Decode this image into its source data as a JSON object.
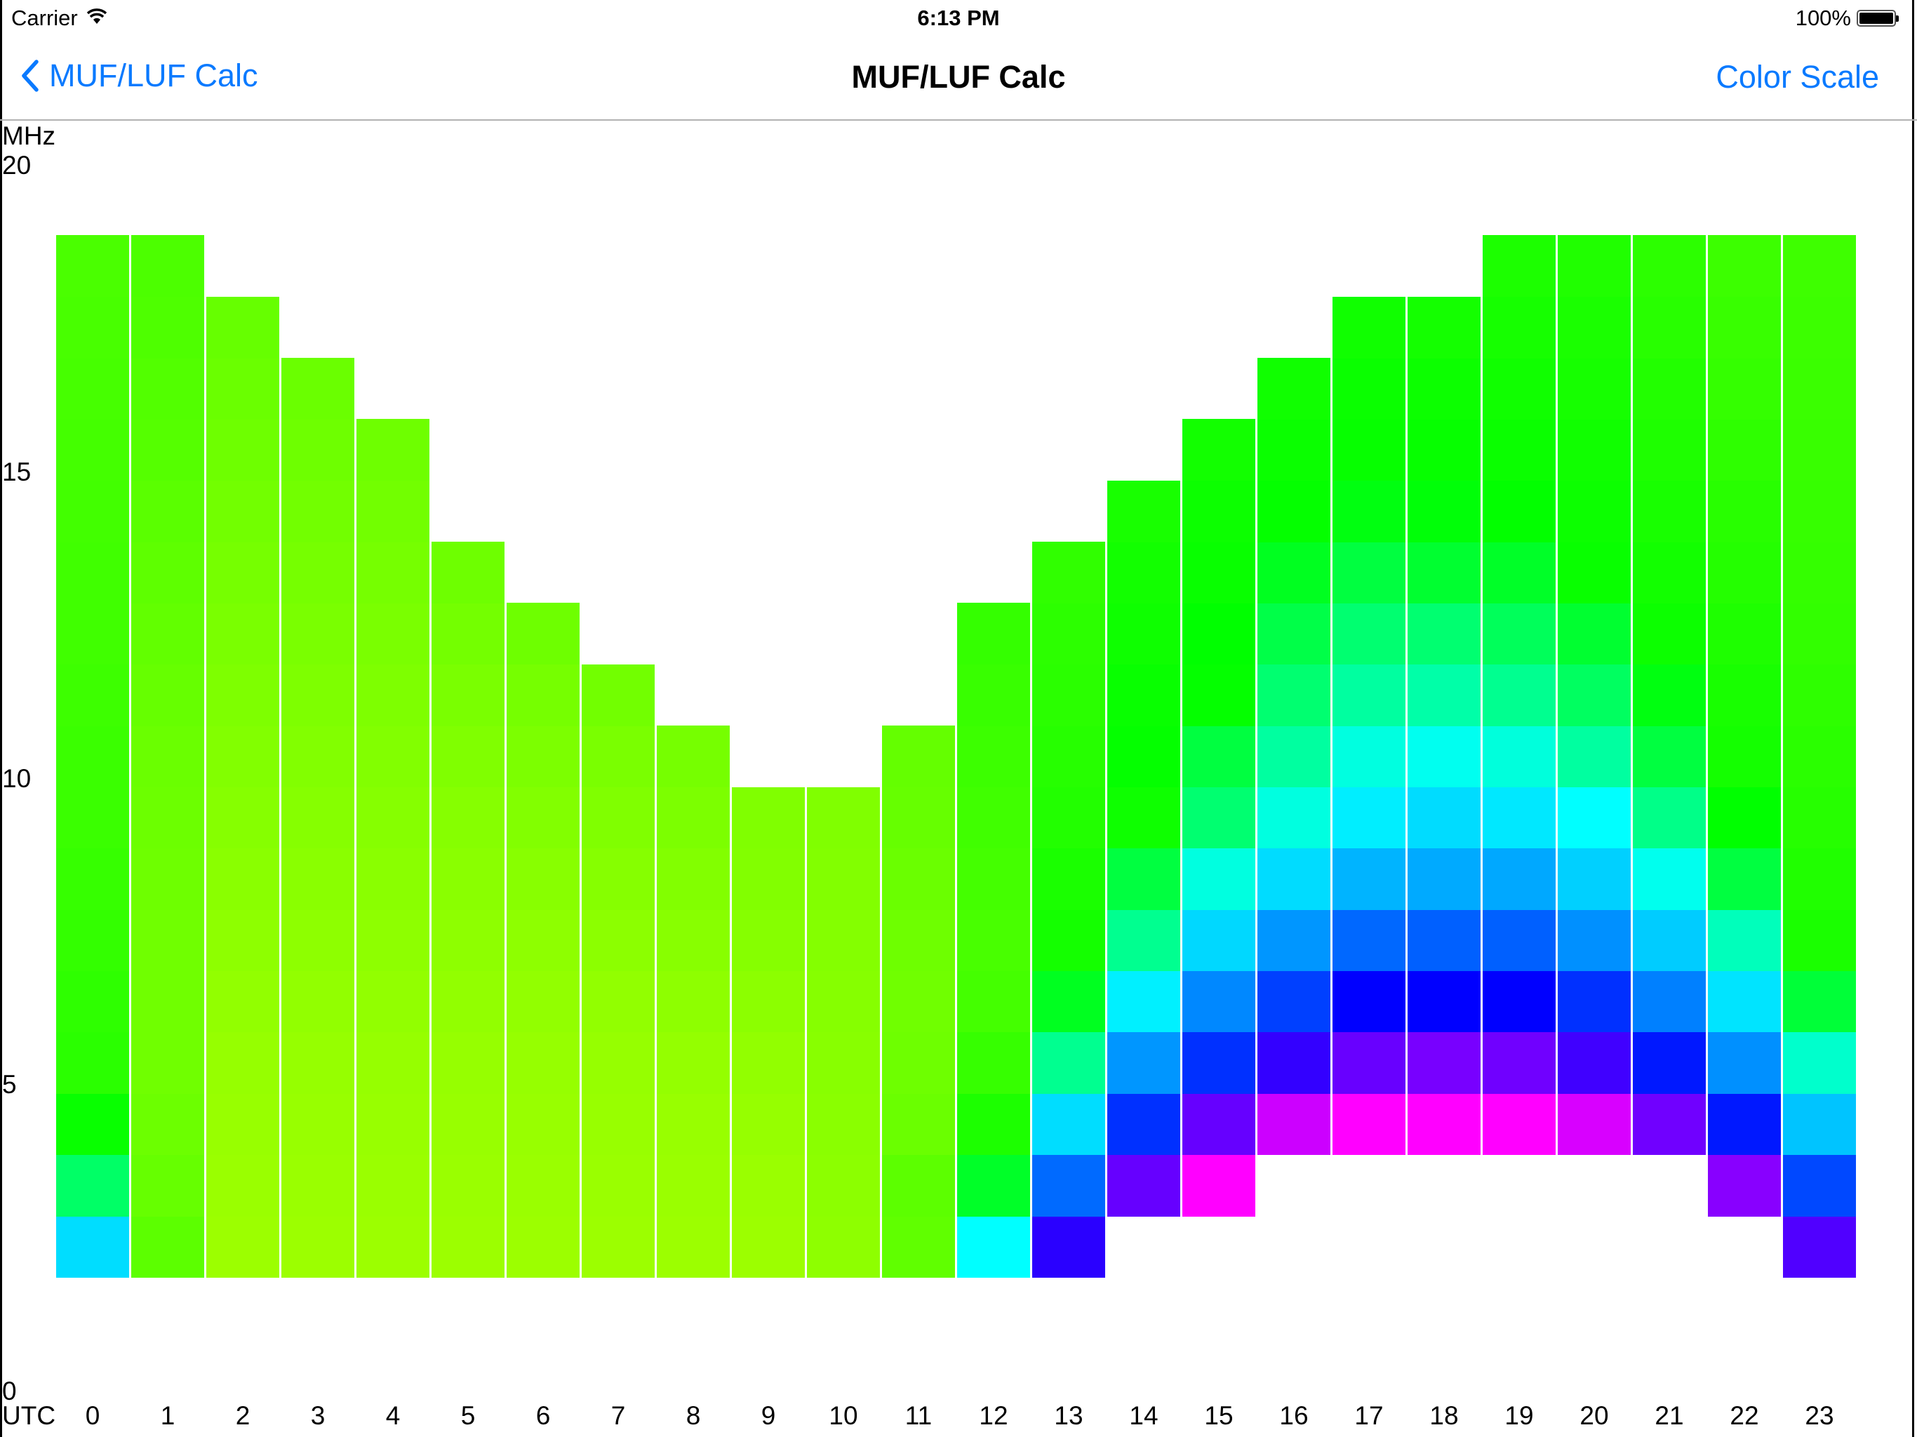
{
  "status_bar": {
    "carrier": "Carrier",
    "wifi_icon": "wifi-icon",
    "time": "6:13 PM",
    "battery_percent": "100%",
    "battery_icon": "battery-full-icon"
  },
  "nav": {
    "back_label": "MUF/LUF Calc",
    "back_icon": "chevron-left-icon",
    "title": "MUF/LUF Calc",
    "right_button": "Color Scale",
    "accent_color": "#0a7aff"
  },
  "chart_data": {
    "type": "heatmap",
    "title": "MUF/LUF Calc",
    "xlabel": "UTC",
    "ylabel": "MHz",
    "ylim": [
      0,
      20
    ],
    "y_ticks": [
      20,
      15,
      10,
      5,
      0
    ],
    "x_ticks": [
      "0",
      "1",
      "2",
      "3",
      "4",
      "5",
      "6",
      "7",
      "8",
      "9",
      "10",
      "11",
      "12",
      "13",
      "14",
      "15",
      "16",
      "17",
      "18",
      "19",
      "20",
      "21",
      "22",
      "23"
    ],
    "grid": false,
    "legend": "none",
    "cell_unit_mhz": 1,
    "columns": [
      {
        "utc": 0,
        "luf": 2,
        "muf": 19,
        "colors": [
          "#00ddff",
          "#00ff66",
          "#08ff00",
          "#2aff00",
          "#2eff00",
          "#33ff00",
          "#36ff00",
          "#3aff00",
          "#3aff00",
          "#3dff00",
          "#40ff00",
          "#40ff00",
          "#42ff00",
          "#44ff00",
          "#46ff00",
          "#48ff00",
          "#4aff00"
        ]
      },
      {
        "utc": 1,
        "luf": 2,
        "muf": 19,
        "colors": [
          "#5cff00",
          "#66ff00",
          "#6cff00",
          "#70ff00",
          "#70ff00",
          "#70ff00",
          "#6eff00",
          "#6cff00",
          "#6aff00",
          "#66ff00",
          "#62ff00",
          "#5eff00",
          "#5aff00",
          "#55ff00",
          "#52ff00",
          "#4eff00",
          "#4cff00"
        ]
      },
      {
        "utc": 2,
        "luf": 2,
        "muf": 18,
        "colors": [
          "#9cff00",
          "#9aff00",
          "#98ff00",
          "#96ff00",
          "#92ff00",
          "#8eff00",
          "#8aff00",
          "#86ff00",
          "#82ff00",
          "#7eff00",
          "#7aff00",
          "#76ff00",
          "#72ff00",
          "#6eff00",
          "#6aff00",
          "#66ff00"
        ]
      },
      {
        "utc": 3,
        "luf": 2,
        "muf": 17,
        "colors": [
          "#9cff00",
          "#9aff00",
          "#98ff00",
          "#96ff00",
          "#92ff00",
          "#8eff00",
          "#8aff00",
          "#86ff00",
          "#82ff00",
          "#7eff00",
          "#7aff00",
          "#76ff00",
          "#72ff00",
          "#6eff00",
          "#6aff00"
        ]
      },
      {
        "utc": 4,
        "luf": 2,
        "muf": 16,
        "colors": [
          "#9cff00",
          "#9aff00",
          "#98ff00",
          "#96ff00",
          "#92ff00",
          "#8eff00",
          "#8aff00",
          "#86ff00",
          "#82ff00",
          "#7eff00",
          "#7aff00",
          "#76ff00",
          "#72ff00",
          "#6eff00"
        ]
      },
      {
        "utc": 5,
        "luf": 2,
        "muf": 14,
        "colors": [
          "#9cff00",
          "#9aff00",
          "#98ff00",
          "#96ff00",
          "#92ff00",
          "#8eff00",
          "#8aff00",
          "#86ff00",
          "#80ff00",
          "#7aff00",
          "#74ff00",
          "#6eff00"
        ]
      },
      {
        "utc": 6,
        "luf": 2,
        "muf": 13,
        "colors": [
          "#9cff00",
          "#9aff00",
          "#98ff00",
          "#96ff00",
          "#92ff00",
          "#8eff00",
          "#88ff00",
          "#82ff00",
          "#7cff00",
          "#76ff00",
          "#6eff00"
        ]
      },
      {
        "utc": 7,
        "luf": 2,
        "muf": 12,
        "colors": [
          "#9cff00",
          "#9aff00",
          "#98ff00",
          "#96ff00",
          "#92ff00",
          "#8cff00",
          "#86ff00",
          "#80ff00",
          "#7aff00",
          "#72ff00"
        ]
      },
      {
        "utc": 8,
        "luf": 2,
        "muf": 11,
        "colors": [
          "#9cff00",
          "#9aff00",
          "#98ff00",
          "#94ff00",
          "#8eff00",
          "#88ff00",
          "#82ff00",
          "#7cff00",
          "#76ff00"
        ]
      },
      {
        "utc": 9,
        "luf": 2,
        "muf": 10,
        "colors": [
          "#9cff00",
          "#9aff00",
          "#96ff00",
          "#92ff00",
          "#8cff00",
          "#86ff00",
          "#82ff00",
          "#80ff00"
        ]
      },
      {
        "utc": 10,
        "luf": 2,
        "muf": 10,
        "colors": [
          "#8eff00",
          "#8cff00",
          "#8aff00",
          "#88ff00",
          "#86ff00",
          "#84ff00",
          "#82ff00",
          "#80ff00"
        ]
      },
      {
        "utc": 11,
        "luf": 2,
        "muf": 11,
        "colors": [
          "#60ff00",
          "#5cff00",
          "#6aff00",
          "#6eff00",
          "#70ff00",
          "#6eff00",
          "#6aff00",
          "#66ff00",
          "#64ff00"
        ]
      },
      {
        "utc": 12,
        "luf": 2,
        "muf": 13,
        "colors": [
          "#00ffff",
          "#00ff28",
          "#1cff00",
          "#36ff00",
          "#44ff00",
          "#48ff00",
          "#44ff00",
          "#40ff00",
          "#3cff00",
          "#38ff00",
          "#34ff00"
        ]
      },
      {
        "utc": 13,
        "luf": 2,
        "muf": 14,
        "colors": [
          "#2a00ff",
          "#006aff",
          "#00ddff",
          "#00ff90",
          "#00ff20",
          "#14ff00",
          "#1aff00",
          "#22ff00",
          "#26ff00",
          "#2aff00",
          "#2cff00",
          "#30ff00"
        ]
      },
      {
        "utc": 14,
        "luf": 3,
        "muf": 15,
        "colors": [
          "#6600ff",
          "#0030ff",
          "#0096ff",
          "#00f0ff",
          "#00ff90",
          "#00ff40",
          "#0eff00",
          "#04ff00",
          "#08ff00",
          "#0eff00",
          "#12ff00",
          "#18ff00"
        ]
      },
      {
        "utc": 15,
        "luf": 3,
        "muf": 16,
        "colors": [
          "#ff00ff",
          "#6600ff",
          "#0030ff",
          "#0088ff",
          "#00d8ff",
          "#00ffe0",
          "#00ff70",
          "#00ff40",
          "#04ff00",
          "#00ff00",
          "#08ff00",
          "#0cff00",
          "#12ff00"
        ]
      },
      {
        "utc": 16,
        "luf": 4,
        "muf": 17,
        "colors": [
          "#cc00ff",
          "#3300ff",
          "#0040ff",
          "#0096ff",
          "#00dcff",
          "#00ffe0",
          "#00ffa0",
          "#00ff70",
          "#00ff48",
          "#00ff20",
          "#04ff00",
          "#0aff00",
          "#10ff00"
        ]
      },
      {
        "utc": 17,
        "luf": 4,
        "muf": 18,
        "colors": [
          "#ff00ff",
          "#6800ff",
          "#0000ff",
          "#0068ff",
          "#00b4ff",
          "#00eeff",
          "#00ffe0",
          "#00ffa0",
          "#00ff70",
          "#00ff40",
          "#00ff10",
          "#06ff00",
          "#0aff00",
          "#10ff00"
        ]
      },
      {
        "utc": 18,
        "luf": 4,
        "muf": 18,
        "colors": [
          "#ff00ff",
          "#7800ff",
          "#0000ff",
          "#0060ff",
          "#00aaff",
          "#00dcff",
          "#00fff0",
          "#00ffa8",
          "#00ff70",
          "#00ff30",
          "#00ff08",
          "#06ff00",
          "#0cff00",
          "#14ff00"
        ]
      },
      {
        "utc": 19,
        "luf": 4,
        "muf": 19,
        "colors": [
          "#ff00ff",
          "#7000ff",
          "#0000ff",
          "#0060ff",
          "#00a8ff",
          "#00e8ff",
          "#00ffdc",
          "#00ff90",
          "#00ff5a",
          "#00ff28",
          "#02ff00",
          "#0aff00",
          "#10ff00",
          "#16ff00",
          "#1cff00"
        ]
      },
      {
        "utc": 20,
        "luf": 4,
        "muf": 19,
        "colors": [
          "#d800ff",
          "#4000ff",
          "#0030ff",
          "#0090ff",
          "#00d0ff",
          "#00ffff",
          "#00ffa0",
          "#00ff60",
          "#00ff30",
          "#08ff00",
          "#0cff00",
          "#10ff00",
          "#16ff00",
          "#1aff00",
          "#20ff00"
        ]
      },
      {
        "utc": 21,
        "luf": 4,
        "muf": 19,
        "colors": [
          "#7000ff",
          "#0018ff",
          "#0080ff",
          "#00ccff",
          "#00ffee",
          "#00ff88",
          "#00ff40",
          "#00ff10",
          "#0cff00",
          "#12ff00",
          "#18ff00",
          "#1eff00",
          "#22ff00",
          "#28ff00",
          "#2cff00"
        ]
      },
      {
        "utc": 22,
        "luf": 3,
        "muf": 19,
        "colors": [
          "#8800ff",
          "#0018ff",
          "#0090ff",
          "#00e4ff",
          "#00ffbb",
          "#00ff40",
          "#00ff00",
          "#14ff00",
          "#18ff00",
          "#1eff00",
          "#24ff00",
          "#28ff00",
          "#2eff00",
          "#34ff00",
          "#38ff00",
          "#3cff00"
        ]
      },
      {
        "utc": 23,
        "luf": 2,
        "muf": 19,
        "colors": [
          "#5000ff",
          "#0048ff",
          "#00c4ff",
          "#00ffcc",
          "#00ff38",
          "#1aff00",
          "#20ff00",
          "#26ff00",
          "#2aff00",
          "#2eff00",
          "#32ff00",
          "#34ff00",
          "#36ff00",
          "#38ff00",
          "#3aff00",
          "#3cff00",
          "#3eff00"
        ]
      }
    ]
  }
}
